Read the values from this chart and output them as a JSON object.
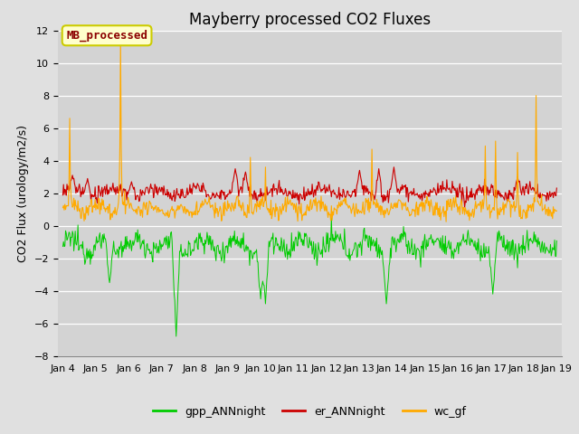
{
  "title": "Mayberry processed CO2 Fluxes",
  "ylabel": "CO2 Flux (urology/m2/s)",
  "ylim": [
    -8,
    12
  ],
  "yticks": [
    -8,
    -6,
    -4,
    -2,
    0,
    2,
    4,
    6,
    8,
    10,
    12
  ],
  "background_color": "#e0e0e0",
  "plot_bg_color": "#d3d3d3",
  "grid_color": "#ffffff",
  "annotation_text": "MB_processed",
  "annotation_color": "#8b0000",
  "annotation_bg": "#ffffcc",
  "annotation_border": "#cccc00",
  "colors": {
    "gpp_ANNnight": "#00cc00",
    "er_ANNnight": "#cc0000",
    "wc_gf": "#ffaa00"
  },
  "n_points": 720,
  "start_day": 4,
  "end_day": 19,
  "x_tick_labels": [
    "Jan 4",
    "Jan 5",
    "Jan 6",
    "Jan 7",
    "Jan 8",
    "Jan 9",
    "Jan 10",
    "Jan 11",
    "Jan 12",
    "Jan 13",
    "Jan 14",
    "Jan 15",
    "Jan 16",
    "Jan 17",
    "Jan 18",
    "Jan 19"
  ],
  "title_fontsize": 12,
  "label_fontsize": 9,
  "tick_fontsize": 8,
  "legend_fontsize": 9,
  "linewidth_gpp": 0.7,
  "linewidth_er": 0.8,
  "linewidth_wc": 0.8
}
